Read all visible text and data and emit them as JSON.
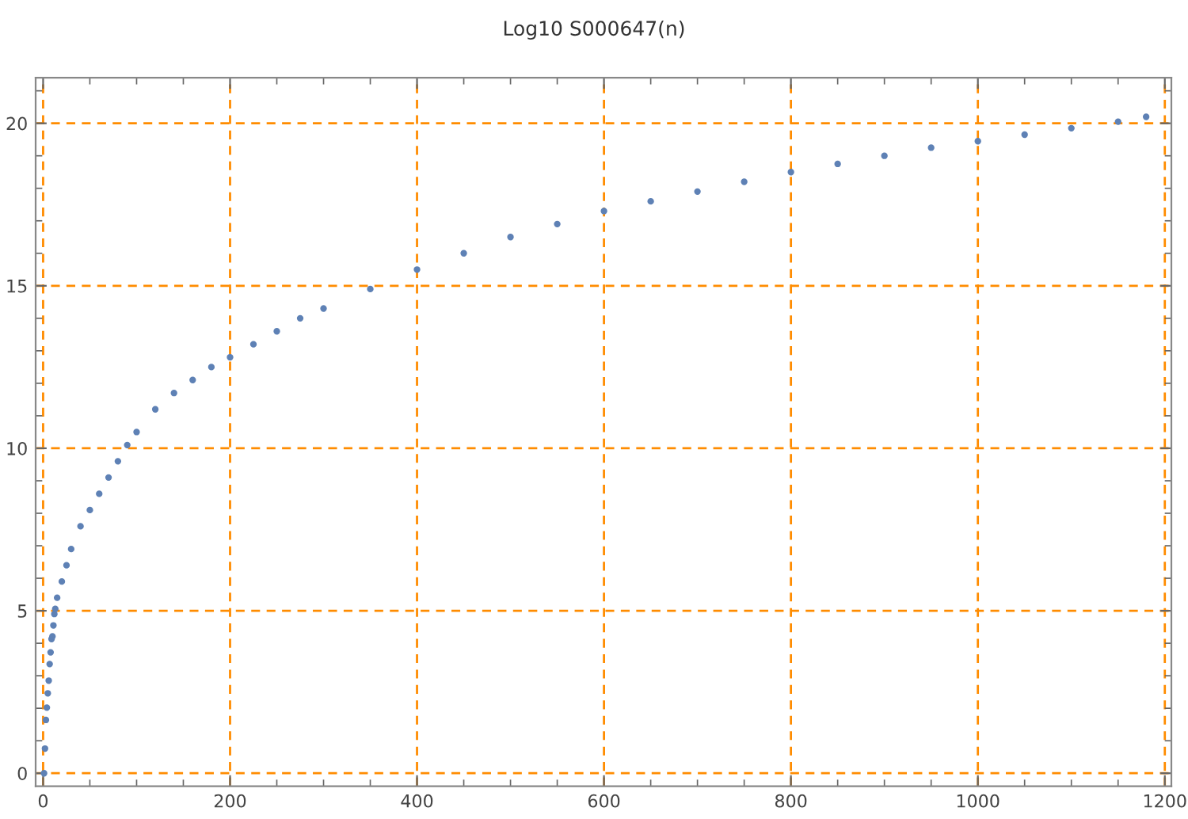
{
  "chart_data": {
    "type": "scatter",
    "title": "Log10 S000647(n)",
    "x": [
      1,
      2,
      3,
      4,
      5,
      6,
      7,
      8,
      9,
      10,
      11,
      12,
      13,
      15,
      20,
      25,
      30,
      40,
      50,
      60,
      70,
      80,
      90,
      100,
      120,
      140,
      160,
      180,
      200,
      225,
      250,
      275,
      300,
      350,
      400,
      450,
      500,
      550,
      600,
      650,
      700,
      750,
      800,
      850,
      900,
      950,
      1000,
      1050,
      1100,
      1150,
      1180
    ],
    "series": [
      {
        "color": "#5e81b5",
        "values": [
          0,
          0.76,
          1.64,
          2.02,
          2.46,
          2.85,
          3.36,
          3.72,
          4.13,
          4.21,
          4.55,
          4.9,
          5.06,
          5.4,
          5.9,
          6.4,
          6.9,
          7.6,
          8.1,
          8.6,
          9.1,
          9.6,
          10.1,
          10.5,
          11.2,
          11.7,
          12.1,
          12.5,
          12.8,
          13.2,
          13.6,
          14.0,
          14.3,
          14.9,
          15.5,
          16.0,
          16.5,
          16.9,
          17.3,
          17.6,
          17.9,
          18.2,
          18.5,
          18.75,
          19.0,
          19.25,
          19.45,
          19.65,
          19.85,
          20.05,
          20.2
        ]
      }
    ],
    "xlim": [
      -8,
      1207
    ],
    "ylim": [
      -0.4,
      21.4
    ],
    "xticks": [
      0,
      200,
      400,
      600,
      800,
      1000,
      1200
    ],
    "yticks": [
      0,
      5,
      10,
      15,
      20
    ],
    "grid": true,
    "marker": "circle"
  }
}
